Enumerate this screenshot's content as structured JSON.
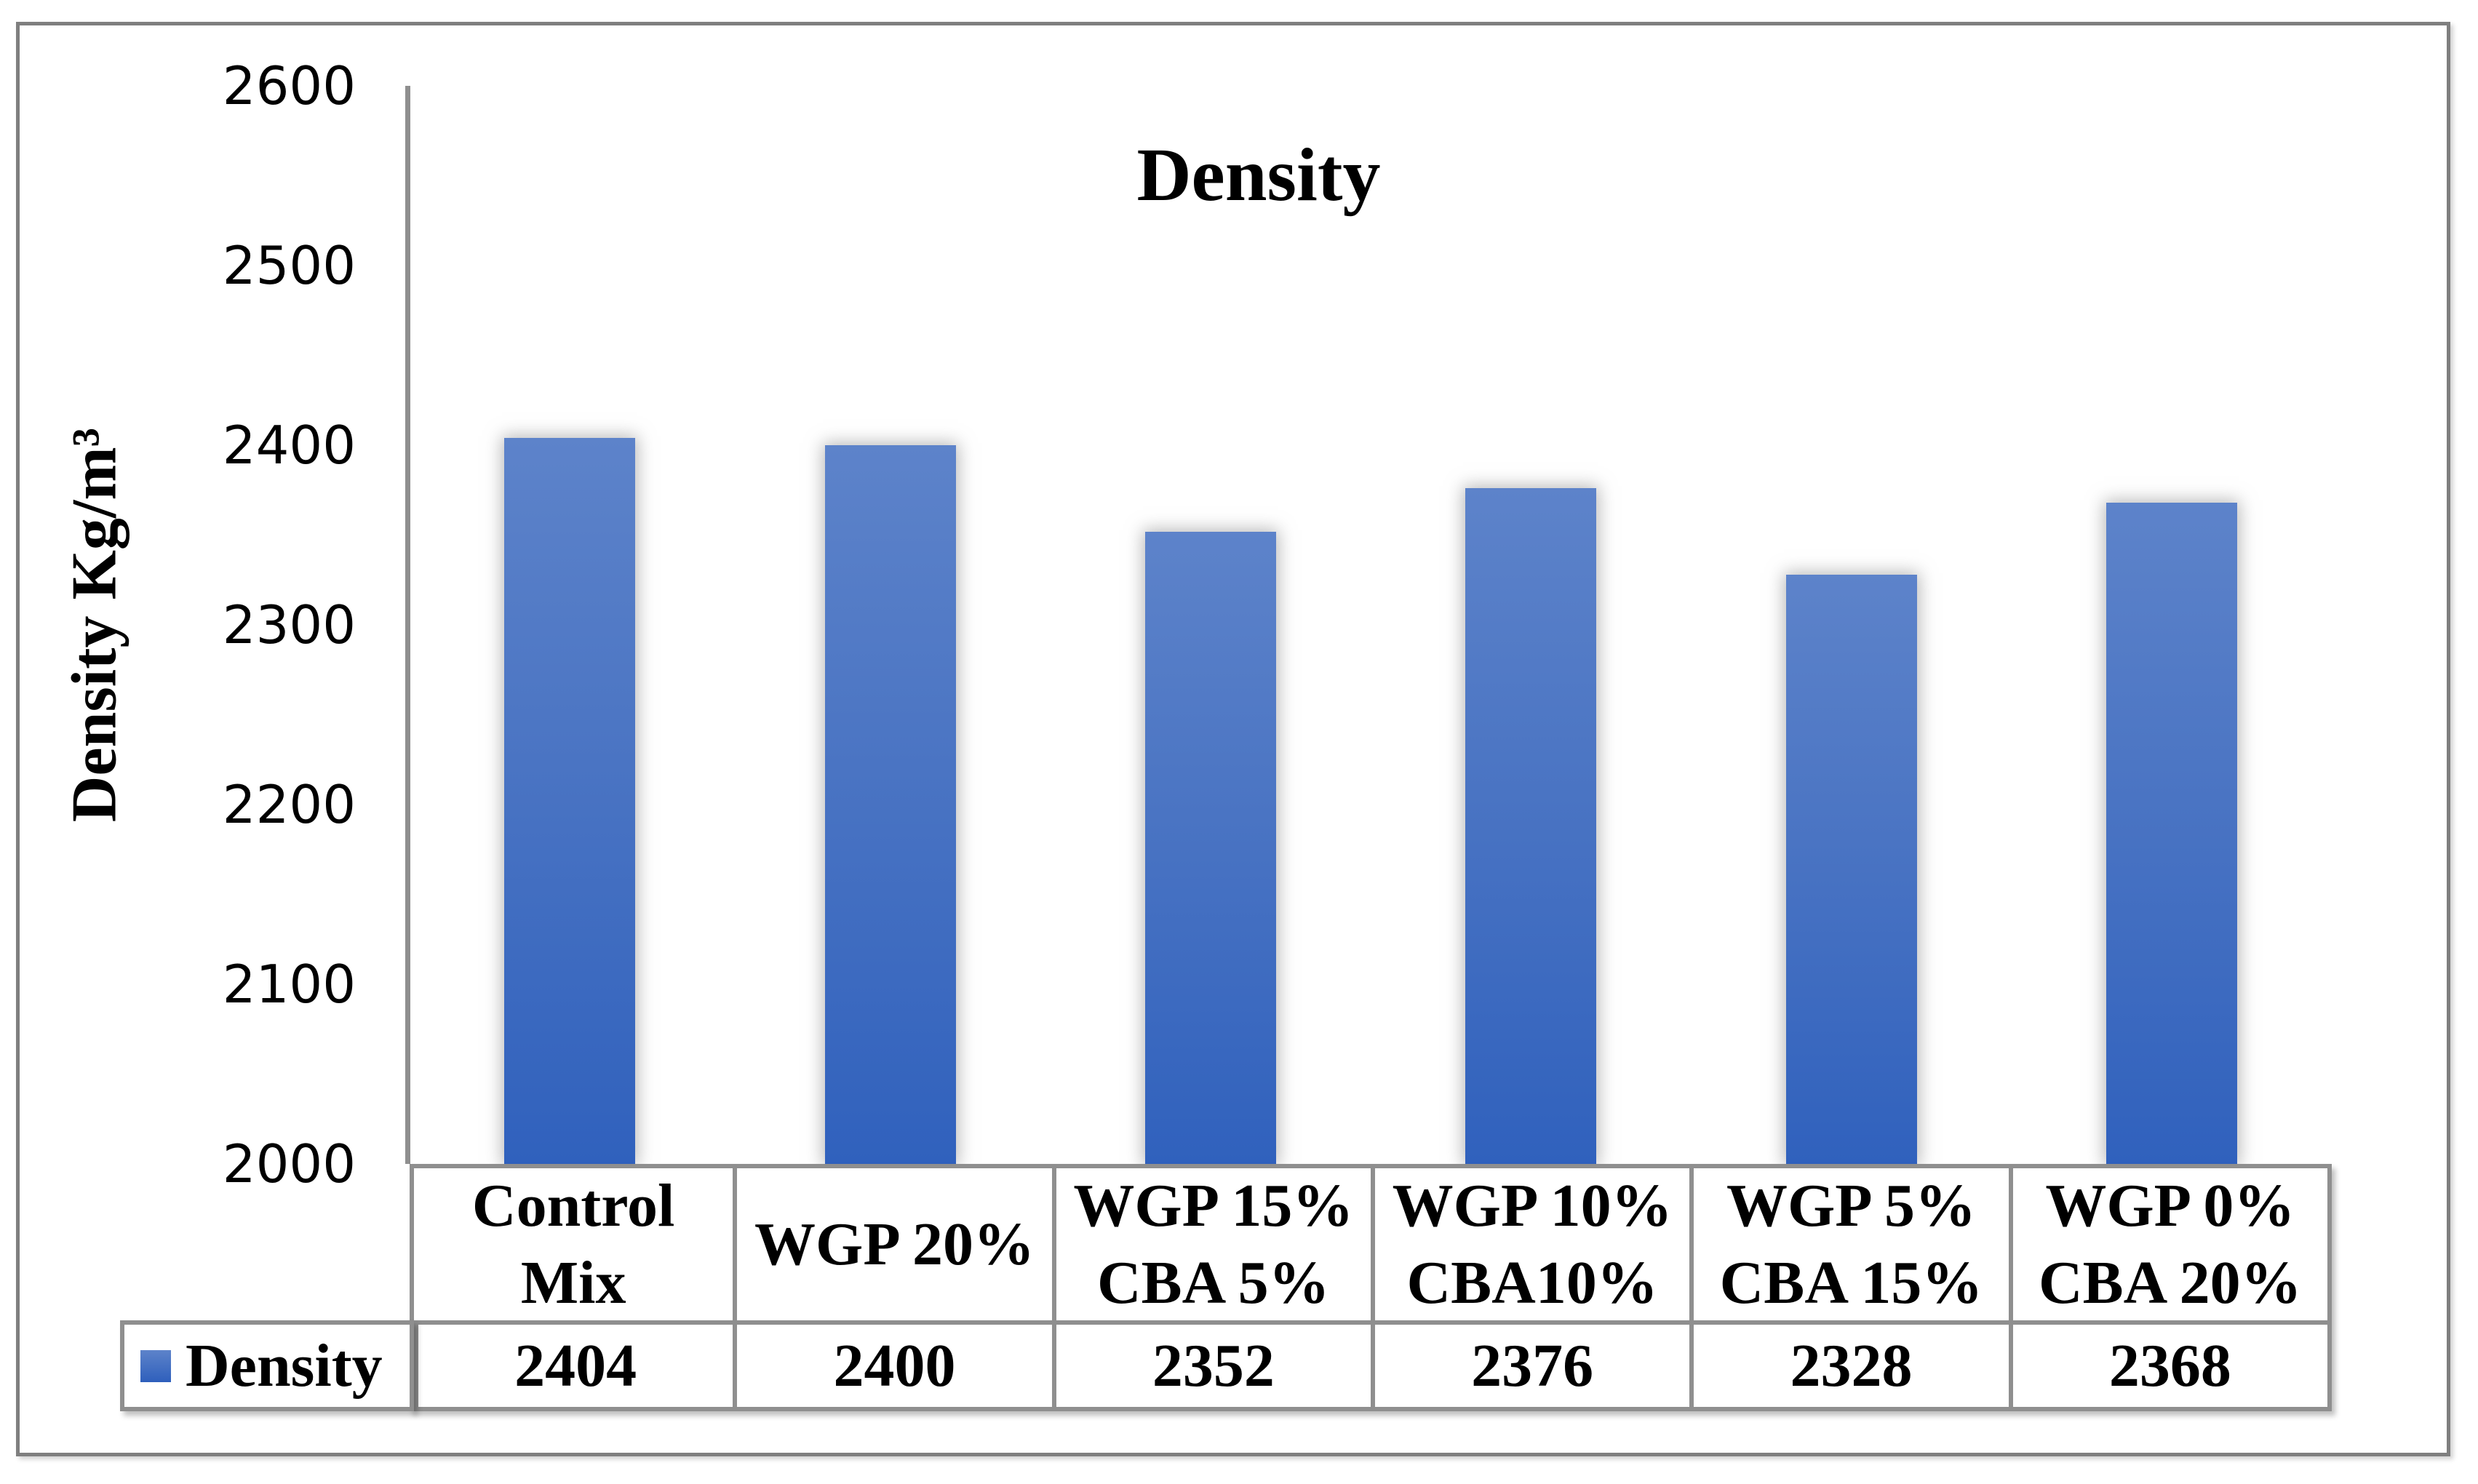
{
  "chart_data": {
    "type": "bar",
    "title": "Density",
    "ylabel": "Density Kg/m³",
    "xlabel": "",
    "categories": [
      "Control\nMix",
      "WGP 20%",
      "WGP 15%\nCBA 5%",
      "WGP 10%\nCBA10%",
      "WGP 5%\nCBA 15%",
      "WGP 0%\nCBA 20%"
    ],
    "series": [
      {
        "name": "Density",
        "values": [
          2404,
          2400,
          2352,
          2376,
          2328,
          2368
        ]
      }
    ],
    "ylim": [
      2000,
      2600
    ],
    "yticks": [
      2600,
      2500,
      2400,
      2300,
      2200,
      2100,
      2000
    ],
    "ytick_step": 100,
    "grid": false,
    "legend_position": "bottom-left-table-row",
    "data_table_shown": true,
    "colors": {
      "bar_top": "#5d83ca",
      "bar_bottom": "#3061bd",
      "axis_line": "#8f8f8f",
      "table_border": "#8f8f8f",
      "frame_border": "#7f7f7f",
      "text": "#000000"
    }
  }
}
